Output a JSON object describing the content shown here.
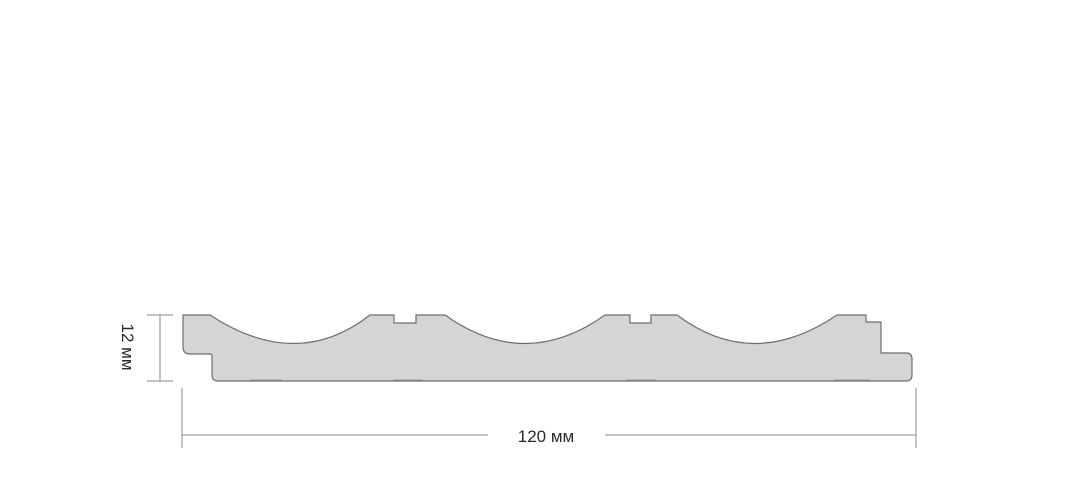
{
  "diagram": {
    "height_label": "12 мм",
    "width_label": "120 мм",
    "colors": {
      "profile_fill": "#d4d5d6",
      "profile_stroke": "#6e6e6e",
      "dimension_line": "#8a8a8a"
    }
  }
}
